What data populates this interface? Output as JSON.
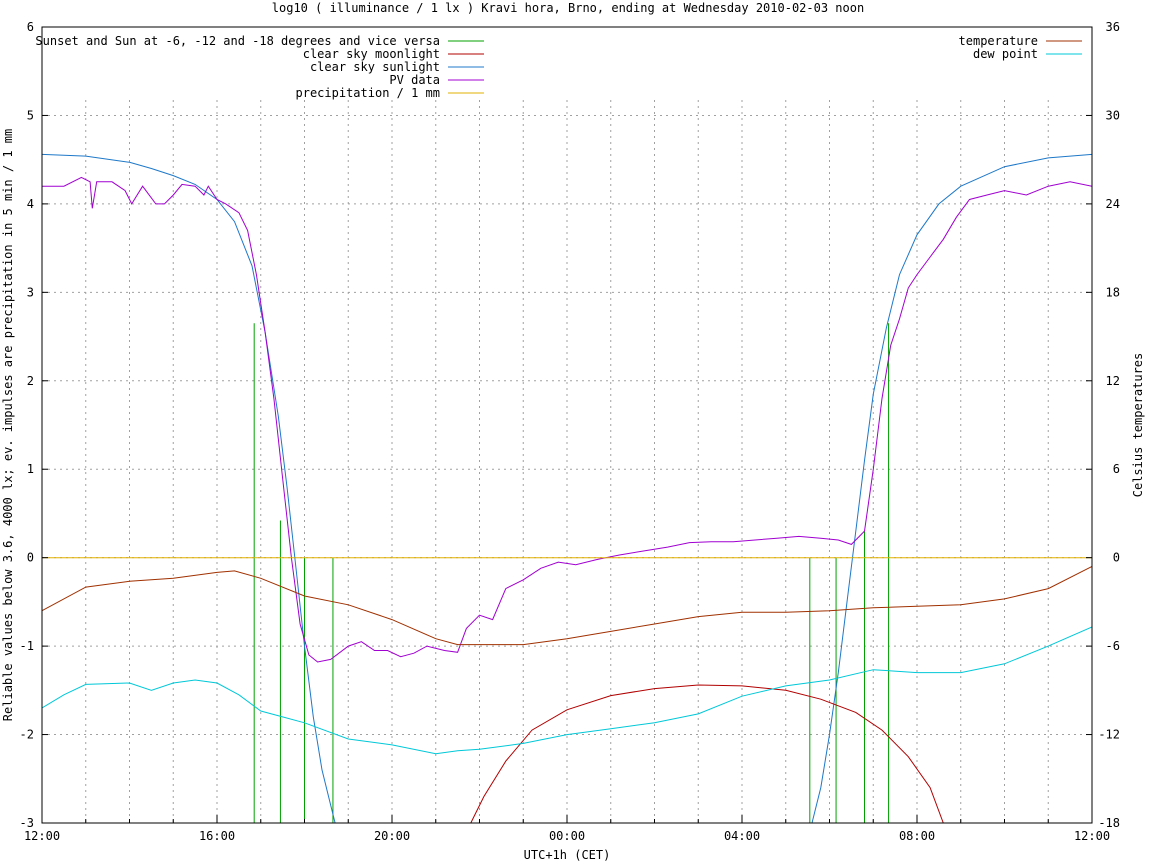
{
  "chart_data": {
    "type": "line",
    "title": "log10 ( illuminance / 1 lx ) Kravi hora, Brno, ending at Wednesday 2010-02-03 noon",
    "xlabel": "UTC+1h (CET)",
    "ylabel": "Reliable values below 3.6, 4000 lx; ev. impulses are precipitation in 5 min / 1 mm",
    "y2label": "Celsius temperatures",
    "xlim": [
      0,
      24
    ],
    "ylim": [
      -3,
      6
    ],
    "y2lim": [
      -18,
      36
    ],
    "x_unit": "hours since 2010-02-02 12:00",
    "x_ticks": [
      {
        "x": 0,
        "label": "12:00"
      },
      {
        "x": 4,
        "label": "16:00"
      },
      {
        "x": 8,
        "label": "20:00"
      },
      {
        "x": 12,
        "label": "00:00"
      },
      {
        "x": 16,
        "label": "04:00"
      },
      {
        "x": 20,
        "label": "08:00"
      },
      {
        "x": 24,
        "label": "12:00"
      }
    ],
    "y_ticks": [
      "-3",
      "-2",
      "-1",
      "0",
      "1",
      "2",
      "3",
      "4",
      "5",
      "6"
    ],
    "y2_ticks": [
      "-18",
      "-12",
      "-6",
      "0",
      "6",
      "12",
      "18",
      "24",
      "30",
      "36"
    ],
    "grid": true,
    "legend_left": [
      {
        "name": "Sunset and Sun at -6, -12 and -18 degrees and vice versa",
        "color": "#00a000"
      },
      {
        "name": "clear sky moonlight",
        "color": "#b00000"
      },
      {
        "name": "clear sky sunlight",
        "color": "#1e78c8"
      },
      {
        "name": "PV data",
        "color": "#a000d0"
      },
      {
        "name": "precipitation / 1 mm",
        "color": "#e0b000"
      }
    ],
    "legend_right": [
      {
        "name": "temperature",
        "color": "#a03000"
      },
      {
        "name": "dew point",
        "color": "#00c8d8"
      }
    ],
    "sun_events": [
      {
        "x": 4.85,
        "y_top": 2.65
      },
      {
        "x": 5.45,
        "y_top": 0.42
      },
      {
        "x": 6.0,
        "y_top": 0
      },
      {
        "x": 6.65,
        "y_top": 0
      },
      {
        "x": 17.55,
        "y_top": 0
      },
      {
        "x": 18.15,
        "y_top": 0
      },
      {
        "x": 18.8,
        "y_top": 0.3
      },
      {
        "x": 19.35,
        "y_top": 2.65
      }
    ],
    "series": [
      {
        "name": "clear sky sunlight",
        "color": "#1e78c8",
        "axis": "y1",
        "points": [
          [
            0,
            4.56
          ],
          [
            1,
            4.54
          ],
          [
            2,
            4.47
          ],
          [
            2.5,
            4.4
          ],
          [
            3,
            4.32
          ],
          [
            3.5,
            4.22
          ],
          [
            4,
            4.05
          ],
          [
            4.4,
            3.8
          ],
          [
            4.8,
            3.3
          ],
          [
            5.1,
            2.55
          ],
          [
            5.4,
            1.6
          ],
          [
            5.6,
            0.8
          ],
          [
            5.8,
            -0.1
          ],
          [
            6.0,
            -1.0
          ],
          [
            6.2,
            -1.8
          ],
          [
            6.4,
            -2.4
          ],
          [
            6.6,
            -2.8
          ],
          [
            6.7,
            -3.0
          ],
          [
            17.6,
            -3.0
          ],
          [
            17.8,
            -2.6
          ],
          [
            18.0,
            -2.0
          ],
          [
            18.2,
            -1.3
          ],
          [
            18.4,
            -0.5
          ],
          [
            18.6,
            0.3
          ],
          [
            18.8,
            1.1
          ],
          [
            19.0,
            1.85
          ],
          [
            19.3,
            2.6
          ],
          [
            19.6,
            3.2
          ],
          [
            20.0,
            3.65
          ],
          [
            20.5,
            4.0
          ],
          [
            21,
            4.2
          ],
          [
            22,
            4.42
          ],
          [
            23,
            4.52
          ],
          [
            24,
            4.56
          ]
        ]
      },
      {
        "name": "clear sky moonlight",
        "color": "#b00000",
        "axis": "y1",
        "points": [
          [
            9.8,
            -3.0
          ],
          [
            10.1,
            -2.7
          ],
          [
            10.6,
            -2.3
          ],
          [
            11.2,
            -1.95
          ],
          [
            12,
            -1.72
          ],
          [
            13,
            -1.56
          ],
          [
            14,
            -1.48
          ],
          [
            15,
            -1.44
          ],
          [
            16,
            -1.45
          ],
          [
            17,
            -1.5
          ],
          [
            17.8,
            -1.6
          ],
          [
            18.6,
            -1.75
          ],
          [
            19.2,
            -1.95
          ],
          [
            19.8,
            -2.25
          ],
          [
            20.3,
            -2.6
          ],
          [
            20.6,
            -3.0
          ]
        ]
      },
      {
        "name": "PV data",
        "color": "#a000d0",
        "axis": "y1",
        "points": [
          [
            0,
            4.2
          ],
          [
            0.5,
            4.2
          ],
          [
            0.9,
            4.3
          ],
          [
            1.1,
            4.25
          ],
          [
            1.15,
            3.95
          ],
          [
            1.25,
            4.25
          ],
          [
            1.6,
            4.25
          ],
          [
            1.9,
            4.15
          ],
          [
            2.05,
            4.0
          ],
          [
            2.3,
            4.2
          ],
          [
            2.6,
            4.0
          ],
          [
            2.8,
            4.0
          ],
          [
            3.0,
            4.1
          ],
          [
            3.2,
            4.22
          ],
          [
            3.5,
            4.2
          ],
          [
            3.7,
            4.1
          ],
          [
            3.8,
            4.2
          ],
          [
            4.0,
            4.05
          ],
          [
            4.2,
            4.0
          ],
          [
            4.5,
            3.9
          ],
          [
            4.7,
            3.7
          ],
          [
            4.9,
            3.2
          ],
          [
            5.1,
            2.55
          ],
          [
            5.3,
            1.8
          ],
          [
            5.5,
            0.9
          ],
          [
            5.7,
            0.0
          ],
          [
            5.9,
            -0.75
          ],
          [
            6.1,
            -1.1
          ],
          [
            6.3,
            -1.18
          ],
          [
            6.6,
            -1.15
          ],
          [
            7.0,
            -1.0
          ],
          [
            7.3,
            -0.95
          ],
          [
            7.6,
            -1.05
          ],
          [
            7.9,
            -1.05
          ],
          [
            8.2,
            -1.12
          ],
          [
            8.5,
            -1.08
          ],
          [
            8.8,
            -1.0
          ],
          [
            9.2,
            -1.05
          ],
          [
            9.5,
            -1.07
          ],
          [
            9.7,
            -0.8
          ],
          [
            10.0,
            -0.65
          ],
          [
            10.3,
            -0.7
          ],
          [
            10.6,
            -0.35
          ],
          [
            11.0,
            -0.25
          ],
          [
            11.4,
            -0.12
          ],
          [
            11.8,
            -0.05
          ],
          [
            12.2,
            -0.08
          ],
          [
            12.7,
            -0.02
          ],
          [
            13.2,
            0.03
          ],
          [
            13.8,
            0.08
          ],
          [
            14.3,
            0.12
          ],
          [
            14.8,
            0.17
          ],
          [
            15.3,
            0.18
          ],
          [
            15.8,
            0.18
          ],
          [
            16.3,
            0.2
          ],
          [
            16.8,
            0.22
          ],
          [
            17.3,
            0.24
          ],
          [
            17.8,
            0.22
          ],
          [
            18.2,
            0.2
          ],
          [
            18.5,
            0.15
          ],
          [
            18.8,
            0.3
          ],
          [
            19.0,
            1.0
          ],
          [
            19.2,
            1.8
          ],
          [
            19.4,
            2.4
          ],
          [
            19.6,
            2.7
          ],
          [
            19.8,
            3.05
          ],
          [
            20.0,
            3.2
          ],
          [
            20.3,
            3.4
          ],
          [
            20.6,
            3.6
          ],
          [
            20.9,
            3.85
          ],
          [
            21.2,
            4.05
          ],
          [
            21.6,
            4.1
          ],
          [
            22.0,
            4.15
          ],
          [
            22.5,
            4.1
          ],
          [
            23.0,
            4.2
          ],
          [
            23.5,
            4.25
          ],
          [
            24,
            4.2
          ]
        ]
      },
      {
        "name": "precipitation / 1 mm",
        "color": "#e0b000",
        "axis": "y1",
        "points": [
          [
            0,
            0
          ],
          [
            24,
            0
          ]
        ]
      },
      {
        "name": "temperature",
        "color": "#a03000",
        "axis": "y2",
        "points": [
          [
            0,
            -3.6
          ],
          [
            1,
            -2.0
          ],
          [
            2,
            -1.6
          ],
          [
            3,
            -1.4
          ],
          [
            4,
            -1.0
          ],
          [
            4.4,
            -0.9
          ],
          [
            5,
            -1.4
          ],
          [
            6,
            -2.6
          ],
          [
            7,
            -3.2
          ],
          [
            8,
            -4.2
          ],
          [
            9,
            -5.5
          ],
          [
            9.5,
            -5.9
          ],
          [
            10,
            -5.9
          ],
          [
            11,
            -5.9
          ],
          [
            12,
            -5.5
          ],
          [
            13,
            -5.0
          ],
          [
            14,
            -4.5
          ],
          [
            15,
            -4.0
          ],
          [
            16,
            -3.7
          ],
          [
            17,
            -3.7
          ],
          [
            18,
            -3.6
          ],
          [
            19,
            -3.4
          ],
          [
            20,
            -3.3
          ],
          [
            21,
            -3.2
          ],
          [
            22,
            -2.8
          ],
          [
            23,
            -2.1
          ],
          [
            24,
            -0.6
          ]
        ]
      },
      {
        "name": "dew point",
        "color": "#00c8d8",
        "axis": "y2",
        "points": [
          [
            0,
            -10.2
          ],
          [
            0.5,
            -9.3
          ],
          [
            1,
            -8.6
          ],
          [
            2,
            -8.5
          ],
          [
            2.5,
            -9.0
          ],
          [
            3,
            -8.5
          ],
          [
            3.5,
            -8.3
          ],
          [
            4,
            -8.5
          ],
          [
            4.5,
            -9.3
          ],
          [
            5,
            -10.4
          ],
          [
            5.5,
            -10.8
          ],
          [
            6,
            -11.2
          ],
          [
            7,
            -12.3
          ],
          [
            8,
            -12.7
          ],
          [
            9,
            -13.3
          ],
          [
            9.5,
            -13.1
          ],
          [
            10,
            -13.0
          ],
          [
            11,
            -12.6
          ],
          [
            12,
            -12.0
          ],
          [
            13,
            -11.6
          ],
          [
            14,
            -11.2
          ],
          [
            15,
            -10.6
          ],
          [
            16,
            -9.4
          ],
          [
            17,
            -8.7
          ],
          [
            18,
            -8.3
          ],
          [
            19,
            -7.6
          ],
          [
            20,
            -7.8
          ],
          [
            21,
            -7.8
          ],
          [
            22,
            -7.2
          ],
          [
            23,
            -6.0
          ],
          [
            24,
            -4.7
          ]
        ]
      }
    ]
  }
}
